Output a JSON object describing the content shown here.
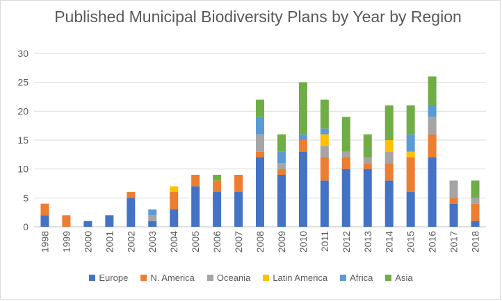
{
  "chart_data": {
    "type": "bar",
    "stacked": true,
    "title": "Published Municipal Biodiversity Plans by Year by Region",
    "xlabel": "",
    "ylabel": "",
    "ylim": [
      0,
      30
    ],
    "yticks": [
      0,
      5,
      10,
      15,
      20,
      25,
      30
    ],
    "grid": true,
    "legend_position": "bottom",
    "categories": [
      "1998",
      "1999",
      "2000",
      "2001",
      "2002",
      "2003",
      "2004",
      "2005",
      "2006",
      "2007",
      "2008",
      "2009",
      "2010",
      "2011",
      "2012",
      "2013",
      "2014",
      "2015",
      "2016",
      "2017",
      "2018"
    ],
    "series": [
      {
        "name": "Europe",
        "color": "#4472C4",
        "values": [
          2,
          0,
          1,
          2,
          5,
          1,
          3,
          7,
          6,
          6,
          12,
          9,
          13,
          8,
          10,
          10,
          8,
          6,
          12,
          4,
          1
        ]
      },
      {
        "name": "N. America",
        "color": "#ED7D31",
        "values": [
          2,
          2,
          0,
          0,
          1,
          0,
          3,
          2,
          2,
          3,
          1,
          1,
          2,
          4,
          2,
          1,
          3,
          6,
          4,
          1,
          3
        ]
      },
      {
        "name": "Oceania",
        "color": "#A5A5A5",
        "values": [
          0,
          0,
          0,
          0,
          0,
          1,
          0,
          0,
          0,
          0,
          3,
          1,
          0,
          2,
          1,
          1,
          2,
          0,
          3,
          3,
          1
        ]
      },
      {
        "name": "Latin America",
        "color": "#FFC000",
        "values": [
          0,
          0,
          0,
          0,
          0,
          0,
          1,
          0,
          0,
          0,
          0,
          0,
          0,
          2,
          0,
          0,
          2,
          1,
          0,
          0,
          0
        ]
      },
      {
        "name": "Africa",
        "color": "#5B9BD5",
        "values": [
          0,
          0,
          0,
          0,
          0,
          1,
          0,
          0,
          0,
          0,
          3,
          2,
          1,
          1,
          0,
          0,
          0,
          3,
          2,
          0,
          0
        ]
      },
      {
        "name": "Asia",
        "color": "#70AD47",
        "values": [
          0,
          0,
          0,
          0,
          0,
          0,
          0,
          0,
          1,
          0,
          3,
          3,
          9,
          5,
          6,
          4,
          6,
          5,
          5,
          0,
          3
        ]
      }
    ]
  }
}
